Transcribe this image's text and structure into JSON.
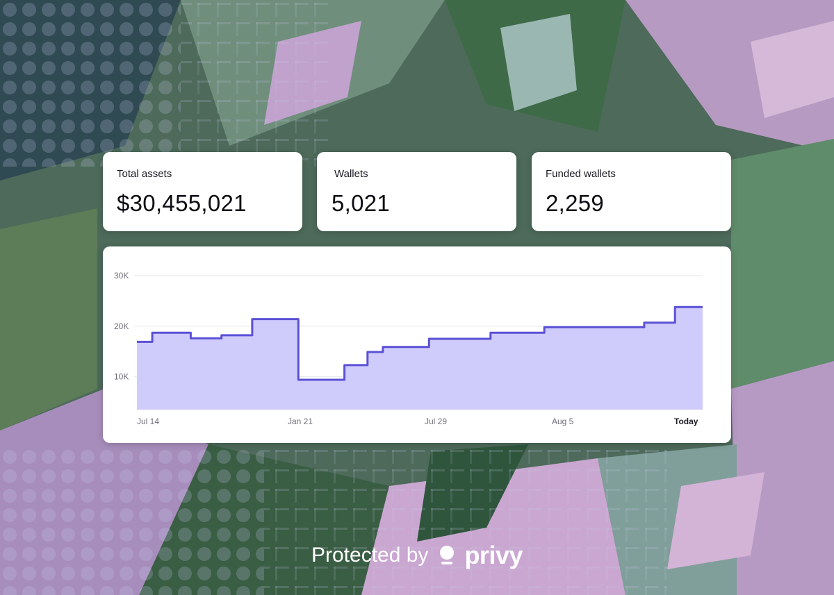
{
  "stats": [
    {
      "label": "Total assets",
      "value": "$30,455,021"
    },
    {
      "label": "Wallets",
      "value": "5,021"
    },
    {
      "label": "Funded wallets",
      "value": "2,259"
    }
  ],
  "chart_data": {
    "type": "area",
    "step": true,
    "x_tick_labels": [
      "Jul 14",
      "Jan 21",
      "Jul 29",
      "Aug 5",
      "Today"
    ],
    "y_tick_labels": [
      "30K",
      "20K",
      "10K"
    ],
    "yticks": [
      10000,
      20000,
      30000
    ],
    "ylim": [
      3500,
      30000
    ],
    "grid": true,
    "values": [
      16900,
      18700,
      17600,
      18200,
      21400,
      9400,
      12300,
      14900,
      15900,
      17500,
      18700,
      19800,
      20700,
      23800
    ],
    "segment_widths": [
      1,
      2.5,
      2,
      2,
      3,
      3,
      1.5,
      1,
      3,
      4,
      3.5,
      6.5,
      2,
      1.8
    ],
    "colors": {
      "line": "#5b50d6",
      "fill": "#cfccfb",
      "grid": "#e6e6ea",
      "tick": "#6e6e7a",
      "tick_strong": "#1b1b24"
    }
  },
  "footer": {
    "text": "Protected by",
    "brand": "privy"
  }
}
